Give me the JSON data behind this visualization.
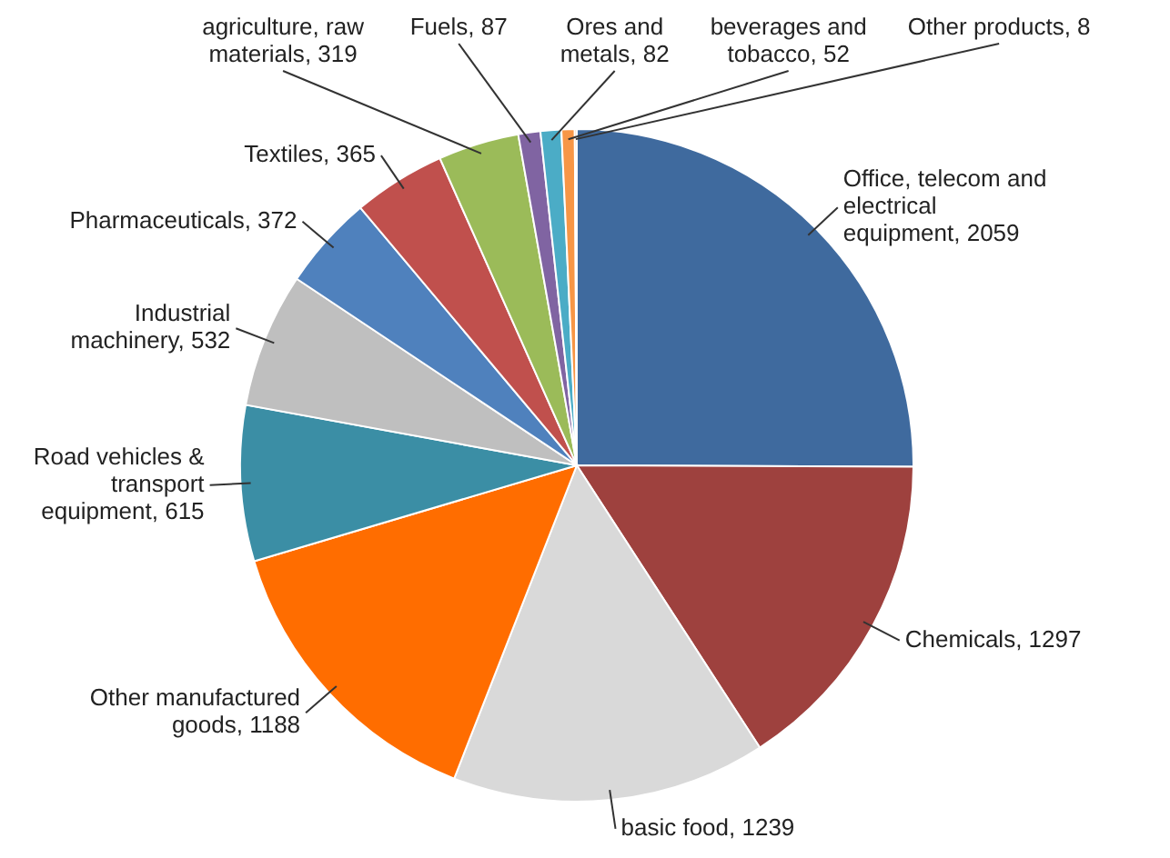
{
  "chart_data": {
    "type": "pie",
    "categories": [
      "Office, telecom and electrical equipment",
      "Chemicals",
      "basic food",
      "Other manufactured goods",
      "Road vehicles & transport equipment",
      "Industrial machinery",
      "Pharmaceuticals",
      "Textiles",
      "agriculture, raw materials",
      "Fuels",
      "Ores and metals",
      "beverages and tobacco",
      "Other products"
    ],
    "values": [
      2059,
      1297,
      1239,
      1188,
      615,
      532,
      372,
      365,
      319,
      87,
      82,
      52,
      8
    ],
    "colors": [
      "#3f6a9e",
      "#9e413e",
      "#d9d9d9",
      "#ff6d00",
      "#3b8ea5",
      "#bfbfbf",
      "#4f81bd",
      "#c0504d",
      "#9bbb59",
      "#8064a2",
      "#4bacc6",
      "#f79646",
      "#ffb066"
    ],
    "value_labels": [
      ", 2059",
      ", 1297",
      ", 1239",
      ", 1188",
      ", 615",
      ", 532",
      ", 372",
      ", 365",
      ", 319",
      ", 87",
      ", 82",
      ", 52",
      ", 8"
    ],
    "legend": false
  }
}
